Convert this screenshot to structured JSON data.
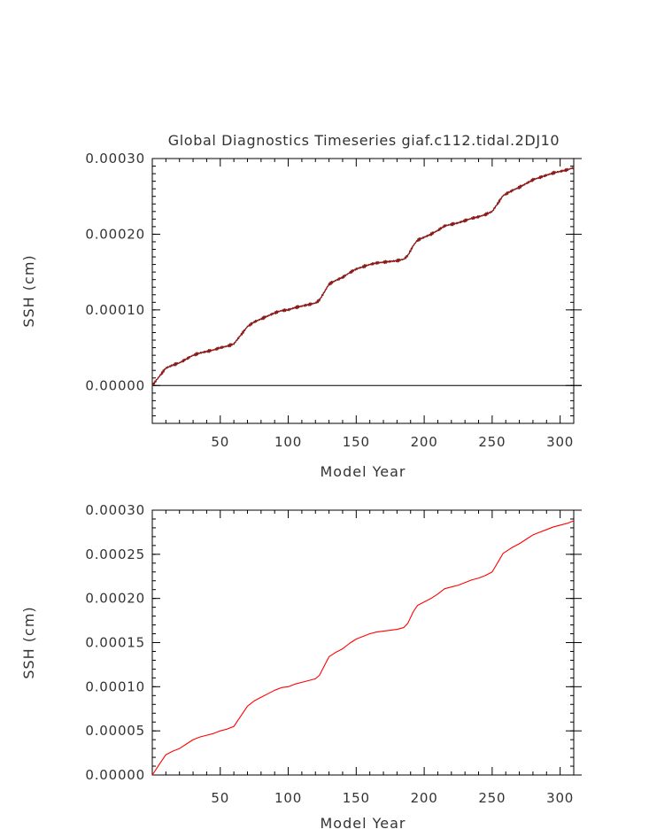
{
  "figure": {
    "title": "Global Diagnostics Timeseries giaf.c112.tidal.2DJ10"
  },
  "chart_data": [
    {
      "type": "line",
      "title": "Global Diagnostics Timeseries giaf.c112.tidal.2DJ10",
      "xlabel": "Model Year",
      "ylabel": "SSH (cm)",
      "xlim": [
        0,
        310
      ],
      "ylim": [
        -5e-05,
        0.0003
      ],
      "x_ticks": [
        50,
        100,
        150,
        200,
        250,
        300
      ],
      "x_tick_labels": [
        "50",
        "100",
        "150",
        "200",
        "250",
        "300"
      ],
      "y_ticks": [
        0.0,
        0.0001,
        0.0002,
        0.0003
      ],
      "y_tick_labels": [
        "0.00000",
        "0.00010",
        "0.00020",
        "0.00030"
      ],
      "zero_line": true,
      "grid": false,
      "line_color": "#8b1a1a",
      "noisy": true,
      "series": [
        {
          "x": [
            0,
            3,
            6,
            10,
            15,
            20,
            25,
            30,
            35,
            40,
            45,
            50,
            55,
            60,
            63,
            67,
            70,
            75,
            80,
            85,
            90,
            95,
            100,
            105,
            110,
            115,
            120,
            123,
            127,
            130,
            135,
            140,
            145,
            150,
            155,
            160,
            165,
            170,
            175,
            180,
            185,
            188,
            192,
            195,
            200,
            205,
            210,
            215,
            220,
            225,
            230,
            235,
            240,
            245,
            250,
            255,
            258,
            262,
            265,
            270,
            275,
            280,
            285,
            290,
            295,
            300,
            305,
            310
          ],
          "values": [
            0.0,
            7e-06,
            1.4e-05,
            2.3e-05,
            2.7e-05,
            3e-05,
            3.5e-05,
            4e-05,
            4.3e-05,
            4.5e-05,
            4.7e-05,
            5e-05,
            5.2e-05,
            5.5e-05,
            6.2e-05,
            7.1e-05,
            7.8e-05,
            8.4e-05,
            8.8e-05,
            9.2e-05,
            9.6e-05,
            9.9e-05,
            0.0001,
            0.000103,
            0.000105,
            0.000107,
            0.000109,
            0.000113,
            0.000125,
            0.000134,
            0.000139,
            0.000143,
            0.000149,
            0.000154,
            0.000157,
            0.00016,
            0.000162,
            0.000163,
            0.000164,
            0.000165,
            0.000167,
            0.000172,
            0.000185,
            0.000192,
            0.000196,
            0.0002,
            0.000205,
            0.000211,
            0.000213,
            0.000215,
            0.000218,
            0.000221,
            0.000223,
            0.000226,
            0.00023,
            0.000243,
            0.000251,
            0.000255,
            0.000258,
            0.000262,
            0.000267,
            0.000272,
            0.000275,
            0.000278,
            0.000281,
            0.000283,
            0.000285,
            0.000288
          ]
        }
      ]
    },
    {
      "type": "line",
      "title": "",
      "xlabel": "Model Year",
      "ylabel": "SSH (cm)",
      "xlim": [
        0,
        310
      ],
      "ylim": [
        0.0,
        0.0003
      ],
      "x_ticks": [
        50,
        100,
        150,
        200,
        250,
        300
      ],
      "x_tick_labels": [
        "50",
        "100",
        "150",
        "200",
        "250",
        "300"
      ],
      "y_ticks": [
        0.0,
        5e-05,
        0.0001,
        0.00015,
        0.0002,
        0.00025,
        0.0003
      ],
      "y_tick_labels": [
        "0.00000",
        "0.00005",
        "0.00010",
        "0.00015",
        "0.00020",
        "0.00025",
        "0.00030"
      ],
      "zero_line": false,
      "grid": false,
      "line_color": "#ff0000",
      "noisy": false,
      "series": [
        {
          "x": [
            0,
            3,
            6,
            10,
            15,
            20,
            25,
            30,
            35,
            40,
            45,
            50,
            55,
            60,
            63,
            67,
            70,
            75,
            80,
            85,
            90,
            95,
            100,
            105,
            110,
            115,
            120,
            123,
            127,
            130,
            135,
            140,
            145,
            150,
            155,
            160,
            165,
            170,
            175,
            180,
            185,
            188,
            192,
            195,
            200,
            205,
            210,
            215,
            220,
            225,
            230,
            235,
            240,
            245,
            250,
            255,
            258,
            262,
            265,
            270,
            275,
            280,
            285,
            290,
            295,
            300,
            305,
            310
          ],
          "values": [
            0.0,
            7e-06,
            1.4e-05,
            2.3e-05,
            2.7e-05,
            3e-05,
            3.5e-05,
            4e-05,
            4.3e-05,
            4.5e-05,
            4.7e-05,
            5e-05,
            5.2e-05,
            5.5e-05,
            6.2e-05,
            7.1e-05,
            7.8e-05,
            8.4e-05,
            8.8e-05,
            9.2e-05,
            9.6e-05,
            9.9e-05,
            0.0001,
            0.000103,
            0.000105,
            0.000107,
            0.000109,
            0.000113,
            0.000125,
            0.000134,
            0.000139,
            0.000143,
            0.000149,
            0.000154,
            0.000157,
            0.00016,
            0.000162,
            0.000163,
            0.000164,
            0.000165,
            0.000167,
            0.000172,
            0.000185,
            0.000192,
            0.000196,
            0.0002,
            0.000205,
            0.000211,
            0.000213,
            0.000215,
            0.000218,
            0.000221,
            0.000223,
            0.000226,
            0.00023,
            0.000243,
            0.000251,
            0.000255,
            0.000258,
            0.000262,
            0.000267,
            0.000272,
            0.000275,
            0.000278,
            0.000281,
            0.000283,
            0.000285,
            0.000288
          ]
        }
      ]
    }
  ]
}
